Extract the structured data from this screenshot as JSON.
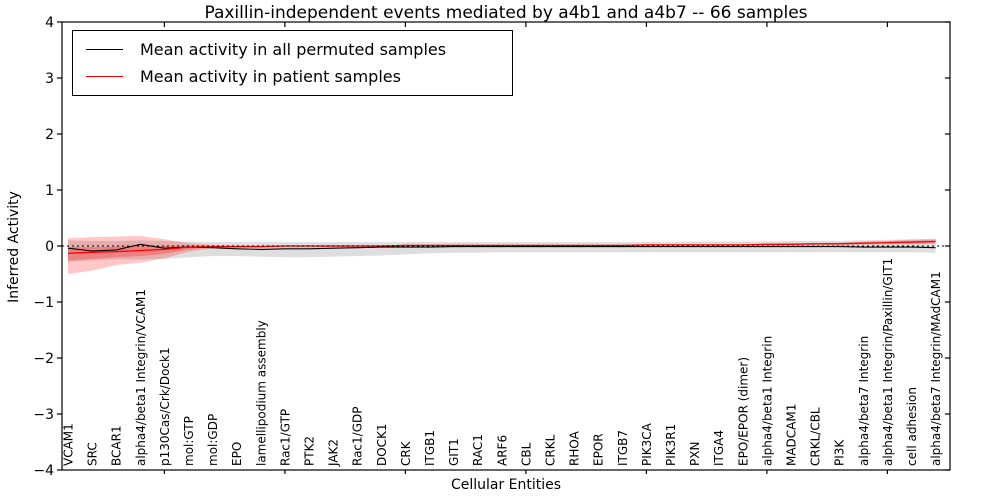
{
  "figure": {
    "title": "Paxillin-independent events mediated by a4b1 and a4b7 -- 66 samples",
    "xlabel": "Cellular Entities",
    "ylabel": "Inferred Activity"
  },
  "legend": {
    "items": [
      {
        "label": "Mean activity in all permuted samples",
        "color": "#000000"
      },
      {
        "label": "Mean activity in patient samples",
        "color": "#ff0000"
      }
    ]
  },
  "chart_data": {
    "type": "line",
    "title": "Paxillin-independent events mediated by a4b1 and a4b7 -- 66 samples",
    "xlabel": "Cellular Entities",
    "ylabel": "Inferred Activity",
    "ylim": [
      -4,
      4
    ],
    "yticks": [
      -4,
      -3,
      -2,
      -1,
      0,
      1,
      2,
      3,
      4
    ],
    "xtick_marks": [
      4,
      9,
      14,
      19,
      24,
      29,
      34
    ],
    "grid": false,
    "zero_line": true,
    "legend_position": "upper left",
    "categories": [
      "VCAM1",
      "SRC",
      "BCAR1",
      "alpha4/beta1 Integrin/VCAM1",
      "p130Cas/Crk/Dock1",
      "mol:GTP",
      "mol:GDP",
      "EPO",
      "lamellipodium assembly",
      "Rac1/GTP",
      "PTK2",
      "JAK2",
      "Rac1/GDP",
      "DOCK1",
      "CRK",
      "ITGB1",
      "GIT1",
      "RAC1",
      "ARF6",
      "CBL",
      "CRKL",
      "RHOA",
      "EPOR",
      "ITGB7",
      "PIK3CA",
      "PIK3R1",
      "PXN",
      "ITGA4",
      "EPO/EPOR (dimer)",
      "alpha4/beta1 Integrin",
      "MADCAM1",
      "CRKL/CBL",
      "PI3K",
      "alpha4/beta7 Integrin",
      "alpha4/beta1 Integrin/Paxillin/GIT1",
      "cell adhesion",
      "alpha4/beta7 Integrin/MAdCAM1"
    ],
    "series": [
      {
        "name": "Mean activity in all permuted samples",
        "color": "#000000",
        "values": [
          -0.04,
          -0.09,
          -0.07,
          0.03,
          -0.04,
          -0.02,
          -0.03,
          -0.05,
          -0.06,
          -0.05,
          -0.05,
          -0.04,
          -0.03,
          -0.02,
          -0.02,
          -0.02,
          -0.01,
          -0.01,
          -0.01,
          -0.01,
          -0.01,
          -0.01,
          -0.01,
          -0.01,
          -0.01,
          -0.01,
          -0.01,
          -0.01,
          -0.01,
          -0.01,
          -0.01,
          -0.01,
          -0.01,
          -0.02,
          -0.02,
          -0.02,
          -0.03
        ]
      },
      {
        "name": "Mean activity in patient samples",
        "color": "#ff0000",
        "values": [
          -0.13,
          -0.11,
          -0.1,
          -0.08,
          -0.06,
          -0.02,
          -0.01,
          -0.01,
          -0.01,
          0,
          0,
          0,
          0,
          0,
          0.01,
          0.01,
          0.01,
          0.01,
          0.01,
          0.01,
          0.01,
          0.01,
          0.01,
          0.01,
          0.02,
          0.02,
          0.02,
          0.02,
          0.02,
          0.03,
          0.03,
          0.04,
          0.04,
          0.05,
          0.06,
          0.07,
          0.08
        ]
      }
    ],
    "bands": [
      {
        "name": "permuted samples range",
        "color": "#000000",
        "opacity": 0.13,
        "upper": [
          0.1,
          0.09,
          0.09,
          0.1,
          0.09,
          0.08,
          0.07,
          0.07,
          0.07,
          0.07,
          0.07,
          0.07,
          0.07,
          0.07,
          0.07,
          0.07,
          0.07,
          0.07,
          0.07,
          0.07,
          0.07,
          0.07,
          0.07,
          0.07,
          0.07,
          0.07,
          0.08,
          0.08,
          0.08,
          0.08,
          0.09,
          0.09,
          0.09,
          0.1,
          0.11,
          0.12,
          0.13
        ],
        "lower": [
          -0.28,
          -0.26,
          -0.24,
          -0.24,
          -0.23,
          -0.2,
          -0.18,
          -0.18,
          -0.19,
          -0.2,
          -0.2,
          -0.19,
          -0.18,
          -0.17,
          -0.15,
          -0.13,
          -0.12,
          -0.12,
          -0.11,
          -0.11,
          -0.11,
          -0.11,
          -0.11,
          -0.11,
          -0.11,
          -0.11,
          -0.11,
          -0.11,
          -0.11,
          -0.11,
          -0.11,
          -0.11,
          -0.11,
          -0.11,
          -0.11,
          -0.11,
          -0.12
        ]
      },
      {
        "name": "patient samples range (outer)",
        "color": "#ff0000",
        "opacity": 0.22,
        "upper": [
          0.14,
          0.16,
          0.17,
          0.18,
          0.12,
          0.05,
          0.02,
          0.01,
          0.01,
          0.01,
          0.01,
          0.01,
          0.01,
          0.01,
          0.02,
          0.02,
          0.02,
          0.02,
          0.02,
          0.02,
          0.02,
          0.02,
          0.02,
          0.02,
          0.03,
          0.03,
          0.03,
          0.03,
          0.03,
          0.04,
          0.05,
          0.05,
          0.06,
          0.08,
          0.09,
          0.11,
          0.12
        ],
        "lower": [
          -0.5,
          -0.44,
          -0.34,
          -0.3,
          -0.22,
          -0.1,
          -0.04,
          -0.03,
          -0.03,
          -0.02,
          -0.02,
          -0.02,
          -0.02,
          -0.01,
          -0.01,
          -0.01,
          0,
          0,
          0,
          0,
          0,
          0,
          0,
          0,
          0.01,
          0.01,
          0.01,
          0.01,
          0.01,
          0.01,
          0.02,
          0.02,
          0.02,
          0.02,
          0.03,
          0.03,
          0.04
        ]
      },
      {
        "name": "patient samples range (inner)",
        "color": "#ff0000",
        "opacity": 0.25,
        "upper": [
          -0.02,
          -0.02,
          -0.01,
          0.02,
          0.0,
          0.01,
          0.0,
          0.0,
          0.0,
          0.01,
          0.01,
          0.01,
          0.01,
          0.01,
          0.01,
          0.01,
          0.01,
          0.01,
          0.01,
          0.01,
          0.01,
          0.01,
          0.01,
          0.01,
          0.02,
          0.02,
          0.02,
          0.02,
          0.02,
          0.03,
          0.04,
          0.04,
          0.05,
          0.06,
          0.07,
          0.09,
          0.1
        ],
        "lower": [
          -0.26,
          -0.23,
          -0.2,
          -0.18,
          -0.14,
          -0.06,
          -0.02,
          -0.02,
          -0.02,
          -0.01,
          -0.01,
          -0.01,
          -0.01,
          -0.01,
          0,
          0,
          0,
          0,
          0,
          0,
          0,
          0,
          0,
          0,
          0.01,
          0.01,
          0.01,
          0.01,
          0.01,
          0.02,
          0.02,
          0.03,
          0.03,
          0.04,
          0.05,
          0.05,
          0.06
        ]
      }
    ]
  }
}
